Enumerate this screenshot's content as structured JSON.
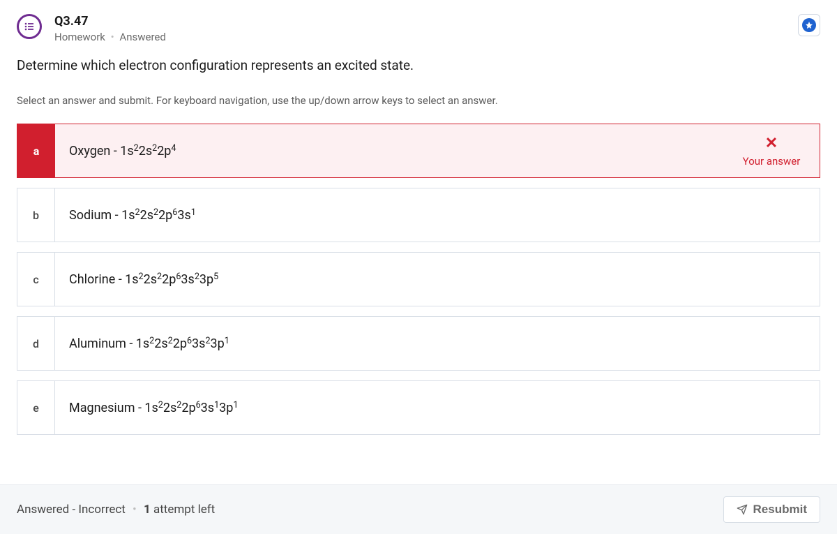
{
  "header": {
    "label": "Q3.47",
    "category": "Homework",
    "status": "Answered"
  },
  "question": {
    "prompt": "Determine which electron configuration represents an excited state.",
    "instructions": "Select an answer and submit. For keyboard navigation, use the up/down arrow keys to select an answer."
  },
  "answers": [
    {
      "letter": "a",
      "element": "Oxygen",
      "config_html": "1s<sup>2</sup>2s<sup>2</sup>2p<sup>4</sup>",
      "selected": true,
      "correct": false
    },
    {
      "letter": "b",
      "element": "Sodium",
      "config_html": "1s<sup>2</sup>2s<sup>2</sup>2p<sup>6</sup>3s<sup>1</sup>",
      "selected": false,
      "correct": false
    },
    {
      "letter": "c",
      "element": "Chlorine",
      "config_html": "1s<sup>2</sup>2s<sup>2</sup>2p<sup>6</sup>3s<sup>2</sup>3p<sup>5</sup>",
      "selected": false,
      "correct": false
    },
    {
      "letter": "d",
      "element": "Aluminum",
      "config_html": "1s<sup>2</sup>2s<sup>2</sup>2p<sup>6</sup>3s<sup>2</sup>3p<sup>1</sup>",
      "selected": false,
      "correct": false
    },
    {
      "letter": "e",
      "element": "Magnesium",
      "config_html": "1s<sup>2</sup>2s<sup>2</sup>2p<sup>6</sup>3s<sup>1</sup>3p<sup>1</sup>",
      "selected": false,
      "correct": false
    }
  ],
  "your_answer_label": "Your answer",
  "footer": {
    "status_1": "Answered - Incorrect",
    "attempts_count": "1",
    "attempts_suffix": "attempt left",
    "resubmit_label": "Resubmit"
  },
  "colors": {
    "brand_purple": "#6f2c91",
    "wrong_red": "#d11f2e",
    "wrong_bg": "#fdf0f2",
    "star_blue": "#1e62d0",
    "border_gray": "#d8dee6",
    "footer_bg": "#f5f7f9",
    "text_gray": "#6a6a6a"
  }
}
